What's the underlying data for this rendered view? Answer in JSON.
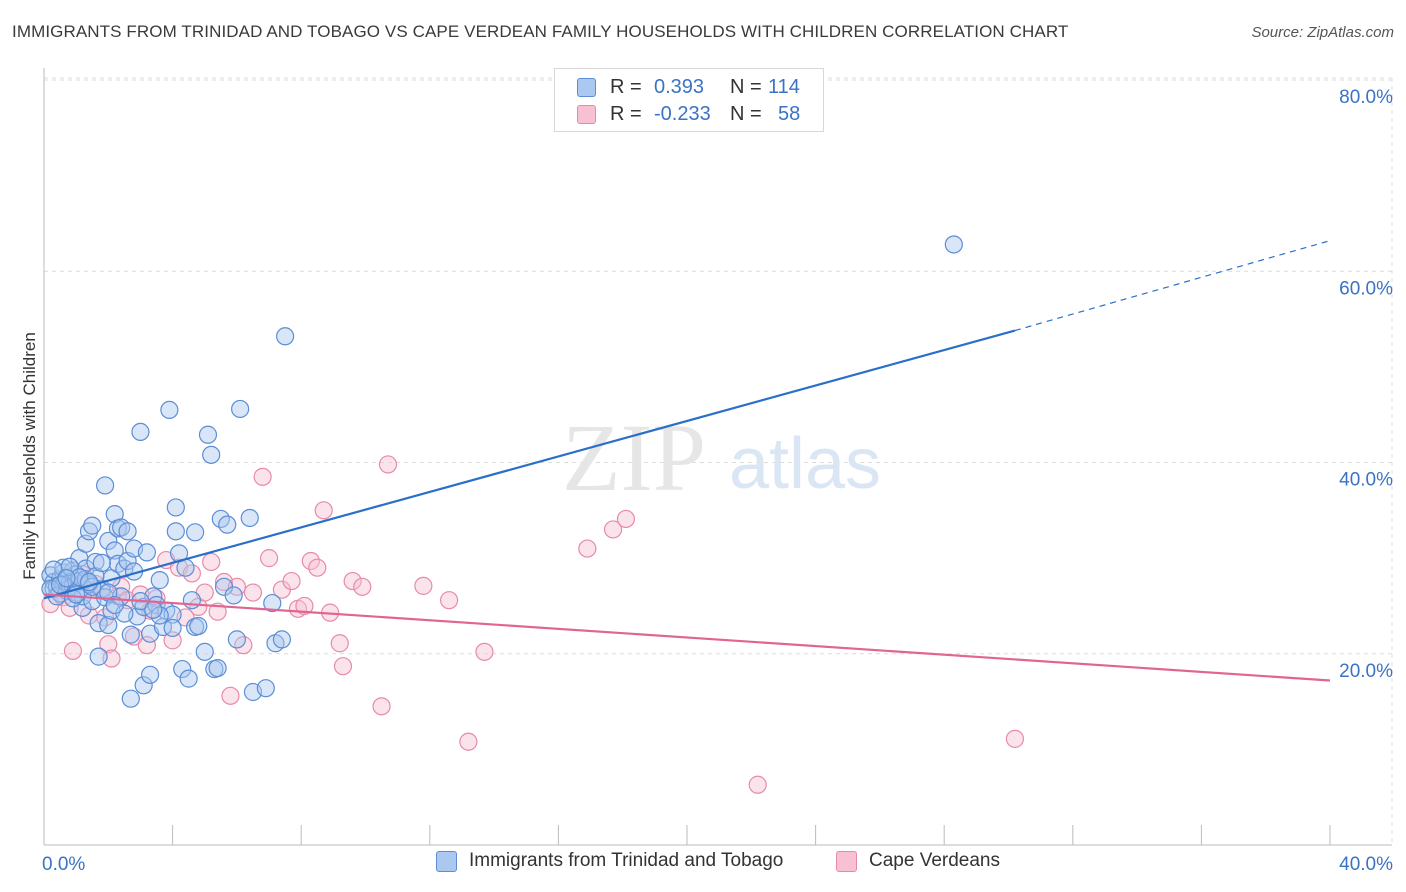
{
  "header": {
    "title": "IMMIGRANTS FROM TRINIDAD AND TOBAGO VS CAPE VERDEAN FAMILY HOUSEHOLDS WITH CHILDREN CORRELATION CHART",
    "source": "Source: ZipAtlas.com"
  },
  "watermark": {
    "zip": "ZIP",
    "atlas": "atlas"
  },
  "legend_top": {
    "rows": [
      {
        "r_label": "R =",
        "r_value": "0.393",
        "n_label": "N =",
        "n_value": "114"
      },
      {
        "r_label": "R =",
        "r_value": "-0.233",
        "n_label": "N =",
        "n_value": "58"
      }
    ]
  },
  "colors": {
    "blue_fill": "#aac8f0",
    "blue_stroke": "#5b8ed6",
    "blue_line": "#2a6fc9",
    "pink_fill": "#f7c1d3",
    "pink_stroke": "#e78aa9",
    "pink_line": "#e06592",
    "axis_text": "#3a73c4",
    "grid": "#dcdcdc"
  },
  "chart_data": {
    "type": "scatter",
    "title": "IMMIGRANTS FROM TRINIDAD AND TOBAGO VS CAPE VERDEAN FAMILY HOUSEHOLDS WITH CHILDREN CORRELATION CHART",
    "xlabel": "",
    "ylabel": "Family Households with Children",
    "xlim": [
      0,
      40
    ],
    "ylim": [
      0,
      80
    ],
    "x_ticks": [
      "0.0%",
      "40.0%"
    ],
    "y_ticks": [
      {
        "value": 20,
        "label": "20.0%"
      },
      {
        "value": 40,
        "label": "40.0%"
      },
      {
        "value": 60,
        "label": "60.0%"
      },
      {
        "value": 80,
        "label": "80.0%"
      }
    ],
    "grid": true,
    "legend_position": "bottom",
    "series": [
      {
        "name": "Immigrants from Trinidad and Tobago",
        "stats": {
          "R": 0.393,
          "N": 114
        },
        "trend": {
          "x0": 0,
          "y0": 25.8,
          "x1": 30.2,
          "y1": 53.8,
          "dash_to_x": 40,
          "dash_to_y": 63.2
        },
        "points": [
          [
            0.2,
            28.2
          ],
          [
            0.3,
            27.5
          ],
          [
            0.3,
            26.8
          ],
          [
            0.4,
            27.0
          ],
          [
            0.5,
            26.3
          ],
          [
            0.5,
            27.8
          ],
          [
            0.6,
            28.5
          ],
          [
            0.6,
            27.2
          ],
          [
            0.7,
            26.6
          ],
          [
            0.7,
            28.0
          ],
          [
            0.8,
            27.4
          ],
          [
            0.8,
            26.9
          ],
          [
            0.9,
            28.7
          ],
          [
            0.9,
            27.1
          ],
          [
            1.0,
            26.4
          ],
          [
            1.0,
            28.3
          ],
          [
            1.1,
            27.6
          ],
          [
            1.1,
            30.0
          ],
          [
            1.2,
            24.8
          ],
          [
            1.2,
            26.0
          ],
          [
            1.3,
            28.9
          ],
          [
            1.3,
            31.5
          ],
          [
            1.4,
            32.8
          ],
          [
            1.4,
            27.3
          ],
          [
            1.5,
            25.5
          ],
          [
            1.5,
            33.4
          ],
          [
            1.6,
            29.6
          ],
          [
            1.7,
            23.2
          ],
          [
            1.7,
            19.7
          ],
          [
            1.8,
            26.8
          ],
          [
            1.9,
            25.9
          ],
          [
            1.9,
            37.6
          ],
          [
            2.0,
            23.0
          ],
          [
            2.0,
            31.8
          ],
          [
            2.1,
            24.5
          ],
          [
            2.1,
            27.9
          ],
          [
            2.2,
            34.6
          ],
          [
            2.2,
            30.8
          ],
          [
            2.3,
            33.1
          ],
          [
            2.3,
            29.4
          ],
          [
            2.4,
            26.0
          ],
          [
            2.4,
            33.2
          ],
          [
            2.5,
            28.9
          ],
          [
            2.6,
            32.8
          ],
          [
            2.6,
            29.7
          ],
          [
            2.7,
            15.3
          ],
          [
            2.7,
            22.0
          ],
          [
            2.8,
            31.0
          ],
          [
            2.9,
            23.9
          ],
          [
            3.0,
            43.2
          ],
          [
            3.1,
            16.7
          ],
          [
            3.1,
            24.9
          ],
          [
            3.2,
            30.6
          ],
          [
            3.3,
            17.8
          ],
          [
            3.3,
            22.1
          ],
          [
            3.4,
            26.0
          ],
          [
            3.5,
            25.1
          ],
          [
            3.6,
            27.7
          ],
          [
            3.7,
            22.8
          ],
          [
            3.8,
            24.5
          ],
          [
            3.9,
            45.5
          ],
          [
            4.0,
            24.1
          ],
          [
            4.1,
            35.3
          ],
          [
            4.1,
            32.8
          ],
          [
            4.2,
            30.5
          ],
          [
            4.3,
            18.4
          ],
          [
            4.4,
            29.0
          ],
          [
            4.5,
            17.4
          ],
          [
            4.6,
            25.6
          ],
          [
            4.7,
            22.8
          ],
          [
            4.7,
            32.7
          ],
          [
            4.8,
            22.9
          ],
          [
            5.0,
            20.2
          ],
          [
            5.1,
            42.9
          ],
          [
            5.2,
            40.8
          ],
          [
            5.3,
            18.4
          ],
          [
            5.4,
            18.5
          ],
          [
            5.5,
            34.1
          ],
          [
            5.6,
            27.0
          ],
          [
            5.7,
            33.5
          ],
          [
            5.9,
            26.1
          ],
          [
            6.0,
            21.5
          ],
          [
            6.1,
            45.6
          ],
          [
            6.4,
            34.2
          ],
          [
            6.5,
            16.0
          ],
          [
            6.9,
            16.4
          ],
          [
            7.1,
            25.3
          ],
          [
            7.2,
            21.1
          ],
          [
            7.4,
            21.5
          ],
          [
            7.5,
            53.2
          ],
          [
            28.3,
            62.8
          ],
          [
            0.4,
            26.0
          ],
          [
            0.6,
            29.0
          ],
          [
            0.9,
            25.8
          ],
          [
            1.3,
            27.8
          ],
          [
            1.6,
            28.1
          ],
          [
            2.0,
            26.4
          ],
          [
            2.5,
            24.2
          ],
          [
            3.0,
            25.5
          ],
          [
            3.6,
            24.0
          ],
          [
            0.2,
            26.8
          ],
          [
            0.5,
            27.2
          ],
          [
            0.8,
            29.1
          ],
          [
            1.1,
            28.0
          ],
          [
            1.5,
            27.0
          ],
          [
            1.8,
            29.5
          ],
          [
            2.2,
            25.1
          ],
          [
            2.8,
            28.6
          ],
          [
            3.4,
            24.6
          ],
          [
            4.0,
            22.7
          ],
          [
            0.3,
            28.8
          ],
          [
            0.7,
            27.9
          ],
          [
            1.0,
            26.2
          ],
          [
            1.4,
            27.5
          ]
        ]
      },
      {
        "name": "Cape Verdeans",
        "stats": {
          "R": -0.233,
          "N": 58
        },
        "trend": {
          "x0": 0,
          "y0": 26.2,
          "x1": 40,
          "y1": 17.2
        },
        "points": [
          [
            0.2,
            25.2
          ],
          [
            0.4,
            26.8
          ],
          [
            0.6,
            25.9
          ],
          [
            0.8,
            24.8
          ],
          [
            0.9,
            20.3
          ],
          [
            1.1,
            27.5
          ],
          [
            1.2,
            28.3
          ],
          [
            1.4,
            24.0
          ],
          [
            1.6,
            27.3
          ],
          [
            1.8,
            26.6
          ],
          [
            1.9,
            23.8
          ],
          [
            2.0,
            21.0
          ],
          [
            2.1,
            19.5
          ],
          [
            2.3,
            26.0
          ],
          [
            2.4,
            27.0
          ],
          [
            2.6,
            25.6
          ],
          [
            2.8,
            21.8
          ],
          [
            3.0,
            26.2
          ],
          [
            3.2,
            20.9
          ],
          [
            3.3,
            24.5
          ],
          [
            3.5,
            25.8
          ],
          [
            3.8,
            29.8
          ],
          [
            4.0,
            21.4
          ],
          [
            4.2,
            29.0
          ],
          [
            4.4,
            23.8
          ],
          [
            4.6,
            28.4
          ],
          [
            4.8,
            24.9
          ],
          [
            5.0,
            26.4
          ],
          [
            5.2,
            29.6
          ],
          [
            5.4,
            24.4
          ],
          [
            5.6,
            27.5
          ],
          [
            5.8,
            15.6
          ],
          [
            6.0,
            27.0
          ],
          [
            6.2,
            20.9
          ],
          [
            6.5,
            26.4
          ],
          [
            6.8,
            38.5
          ],
          [
            7.0,
            30.0
          ],
          [
            7.4,
            26.7
          ],
          [
            7.7,
            27.6
          ],
          [
            7.9,
            24.7
          ],
          [
            8.1,
            25.0
          ],
          [
            8.3,
            29.7
          ],
          [
            8.5,
            29.0
          ],
          [
            8.7,
            35.0
          ],
          [
            8.9,
            24.3
          ],
          [
            9.2,
            21.1
          ],
          [
            9.3,
            18.7
          ],
          [
            9.6,
            27.6
          ],
          [
            9.9,
            27.0
          ],
          [
            10.5,
            14.5
          ],
          [
            10.7,
            39.8
          ],
          [
            11.8,
            27.1
          ],
          [
            12.6,
            25.6
          ],
          [
            13.2,
            10.8
          ],
          [
            13.7,
            20.2
          ],
          [
            16.9,
            31.0
          ],
          [
            17.7,
            33.0
          ],
          [
            18.1,
            34.1
          ]
        ],
        "extra_points": [
          [
            22.2,
            6.3
          ],
          [
            30.2,
            11.1
          ]
        ]
      }
    ]
  },
  "legend_bottom": {
    "items": [
      "Immigrants from Trinidad and Tobago",
      "Cape Verdeans"
    ]
  }
}
